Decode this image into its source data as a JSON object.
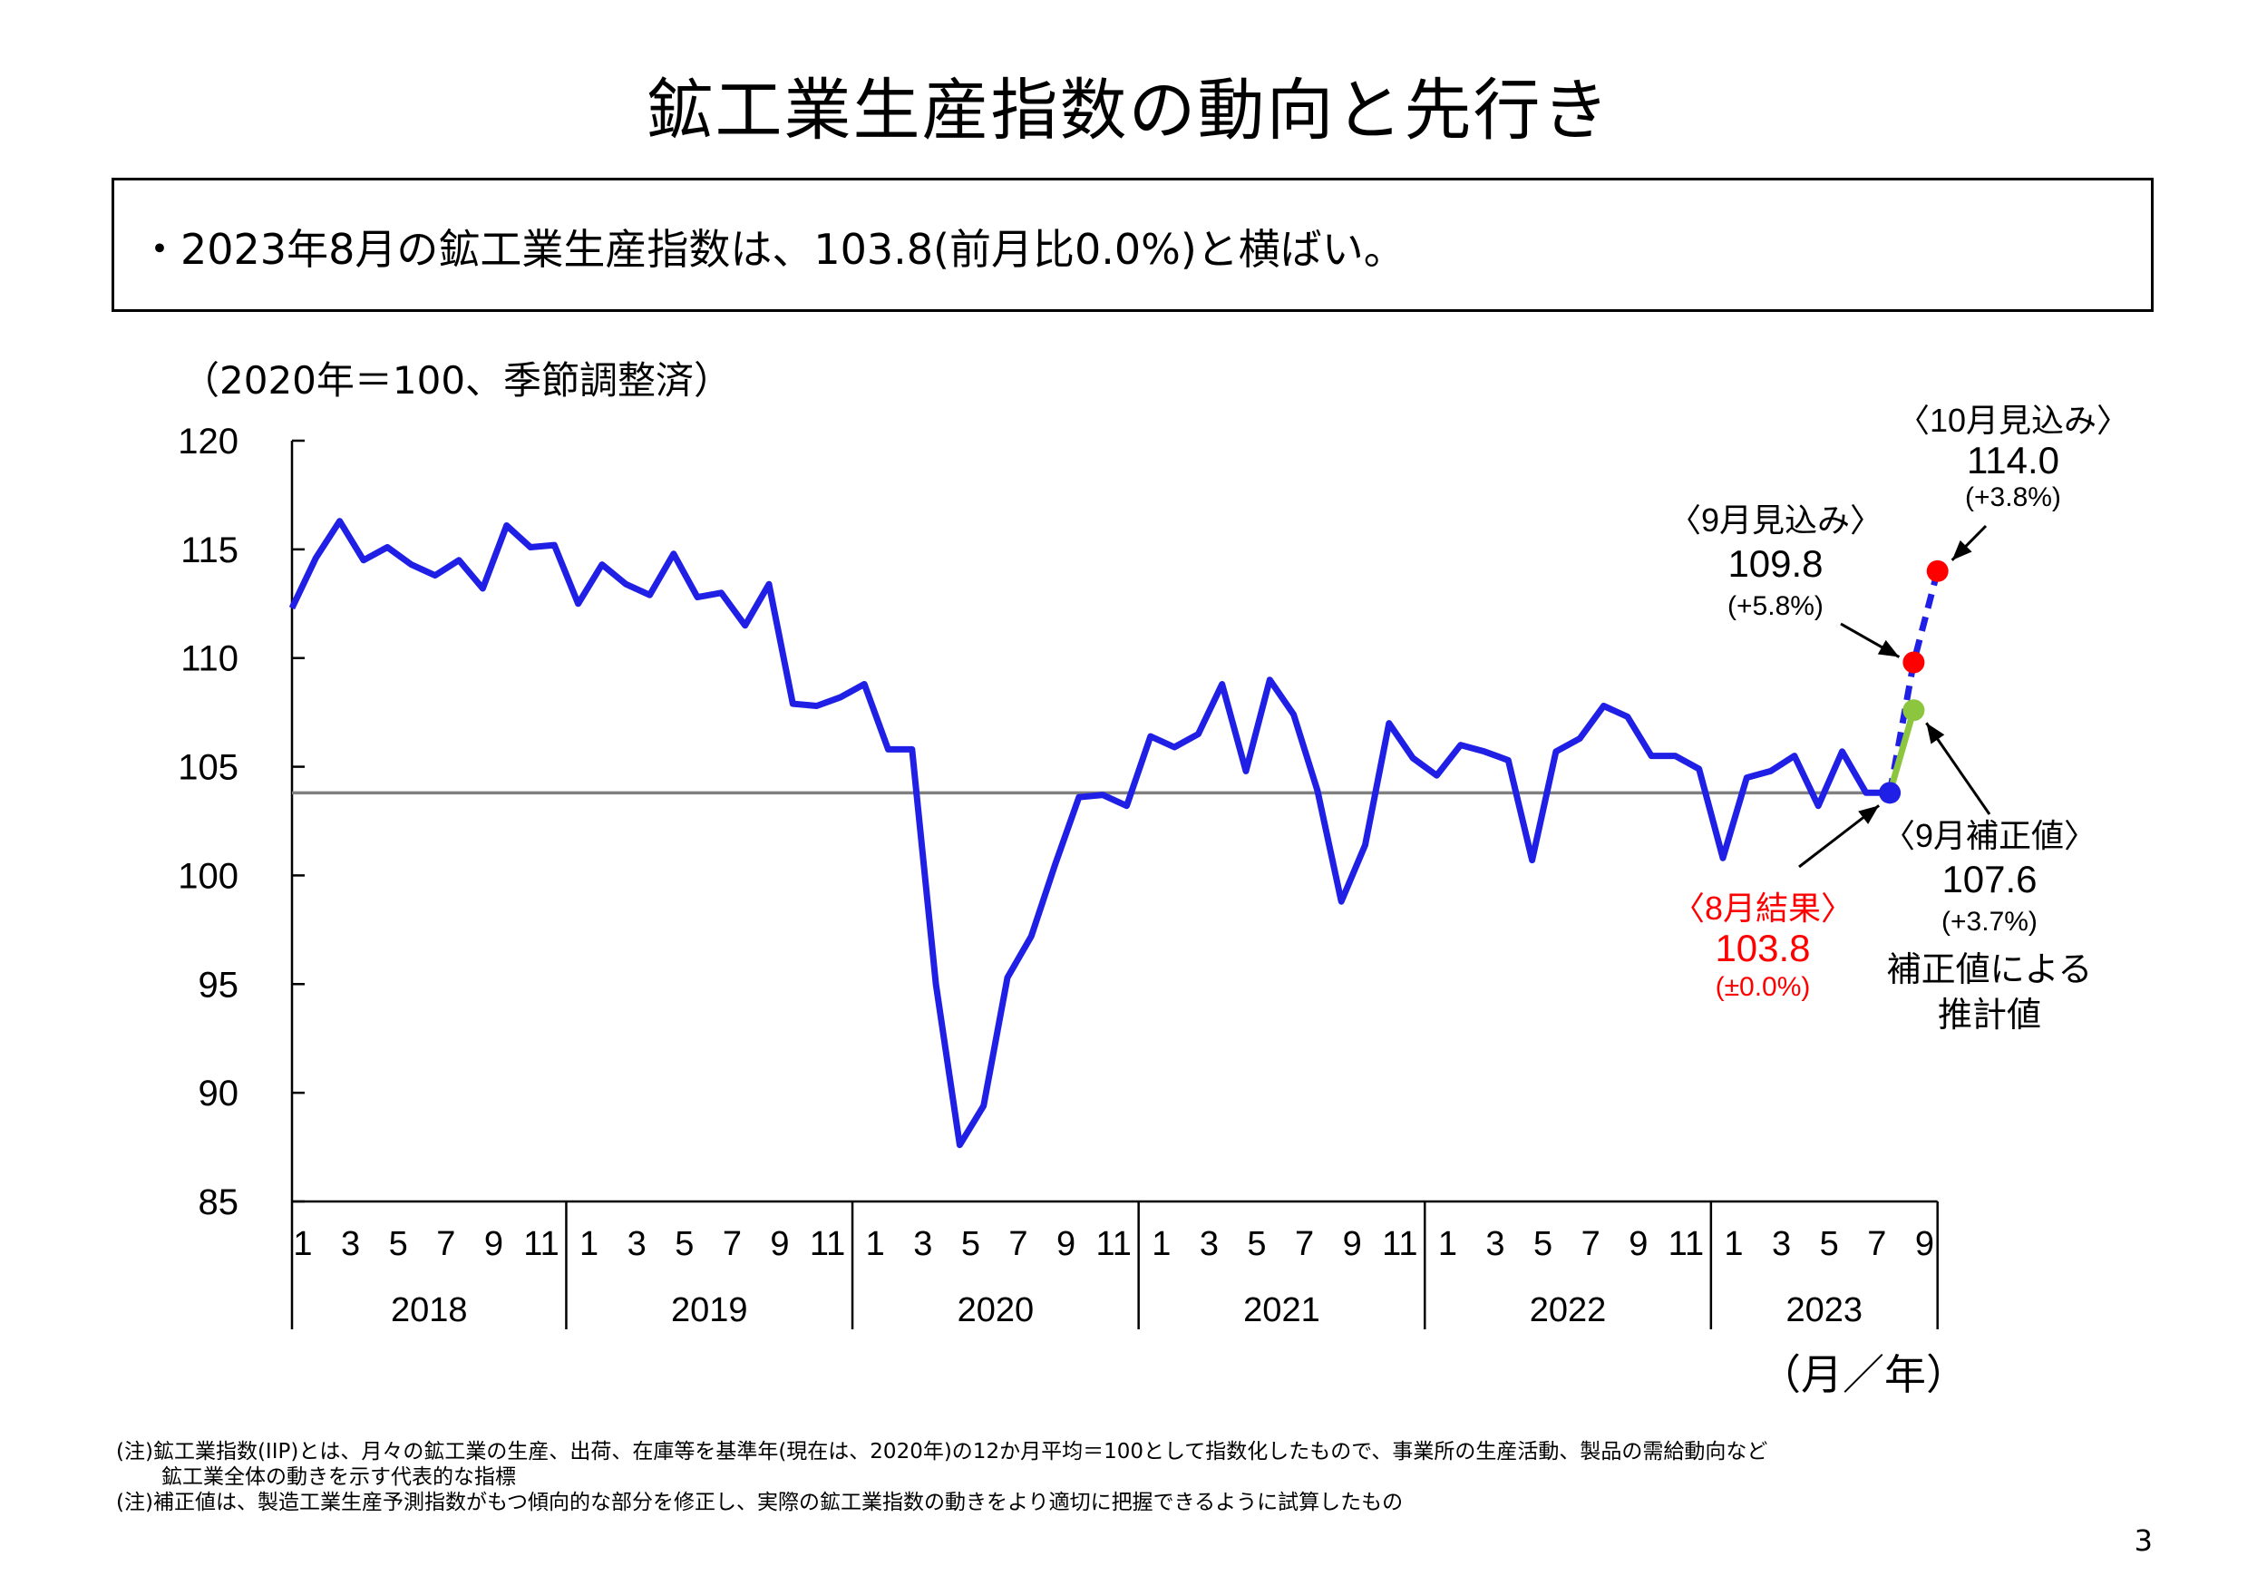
{
  "page": {
    "title": "鉱工業生産指数の動向と先行き",
    "summary": "・2023年8月の鉱工業生産指数は、103.8(前月比0.0%)と横ばい。",
    "unit_label": "（2020年＝100、季節調整済）",
    "axis_unit": "（月／年）",
    "footnotes": [
      "(注)鉱工業指数(IIP)とは、月々の鉱工業の生産、出荷、在庫等を基準年(現在は、2020年)の12か月平均＝100として指数化したもので、事業所の生産活動、製品の需給動向など",
      "鉱工業全体の動きを示す代表的な指標",
      "(注)補正値は、製造工業生産予測指数がもつ傾向的な部分を修正し、実際の鉱工業指数の動きをより適切に把握できるように試算したもの"
    ],
    "page_number": "3"
  },
  "chart_data": {
    "type": "line",
    "ylim": [
      85,
      120
    ],
    "yticks": [
      "120",
      "115",
      "110",
      "105",
      "100",
      "95",
      "90",
      "85"
    ],
    "ytick_values": [
      120,
      115,
      110,
      105,
      100,
      95,
      90,
      85
    ],
    "month_labels": [
      "1",
      "3",
      "5",
      "7",
      "9",
      "11"
    ],
    "years": [
      "2018",
      "2019",
      "2020",
      "2021",
      "2022",
      "2023"
    ],
    "last_year_month_labels": [
      "1",
      "3",
      "5",
      "7",
      "9"
    ],
    "series": [
      {
        "color": "#1f1fe6",
        "values": [
          112.3,
          114.6,
          116.3,
          114.5,
          115.1,
          114.3,
          113.8,
          114.5,
          113.2,
          116.1,
          115.1,
          115.2,
          112.5,
          114.3,
          113.4,
          112.9,
          114.8,
          112.8,
          113.0,
          111.5,
          113.4,
          107.9,
          107.8,
          108.2,
          108.8,
          105.8,
          105.8,
          95.0,
          87.6,
          89.4,
          95.3,
          97.2,
          100.5,
          103.6,
          103.7,
          103.2,
          106.4,
          105.9,
          106.5,
          108.8,
          104.8,
          109.0,
          107.4,
          103.9,
          98.8,
          101.4,
          107.0,
          105.4,
          104.6,
          106.0,
          105.7,
          105.3,
          100.7,
          105.7,
          106.3,
          107.8,
          107.3,
          105.5,
          105.5,
          104.9,
          100.8,
          104.5,
          104.8,
          105.5,
          103.2,
          105.7,
          103.8,
          103.8
        ]
      }
    ],
    "reference_line": 103.8,
    "forecast": {
      "projection": [
        103.8,
        109.8,
        114.0
      ],
      "corrected": [
        103.8,
        107.6
      ]
    },
    "colors": {
      "series": "#1f1fe6",
      "reference": "#808080",
      "result": "#ff0000",
      "projection_dot": "#ff0000",
      "corrected": "#8cc63f",
      "annotation_red": "#ff0000"
    },
    "annotations": {
      "aug_result": {
        "label": "〈8月結果〉",
        "value": "103.8",
        "change": "(±0.0%)"
      },
      "sep_projection": {
        "label": "〈9月見込み〉",
        "value": "109.8",
        "change": "(+5.8%)"
      },
      "oct_projection": {
        "label": "〈10月見込み〉",
        "value": "114.0",
        "change": "(+3.8%)"
      },
      "sep_corrected": {
        "label": "〈9月補正値〉",
        "value": "107.6",
        "change": "(+3.7%)",
        "note_line1": "補正値による",
        "note_line2": "推計値"
      }
    }
  }
}
